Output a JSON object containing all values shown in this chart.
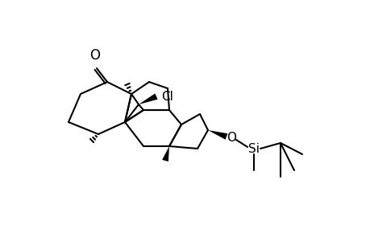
{
  "background": "#ffffff",
  "line_color": "#000000",
  "line_width": 1.5,
  "fig_width": 4.6,
  "fig_height": 3.0,
  "dpi": 100,
  "label_O_ketone": "O",
  "label_Cl": "Cl",
  "label_O": "O",
  "label_Si": "Si"
}
